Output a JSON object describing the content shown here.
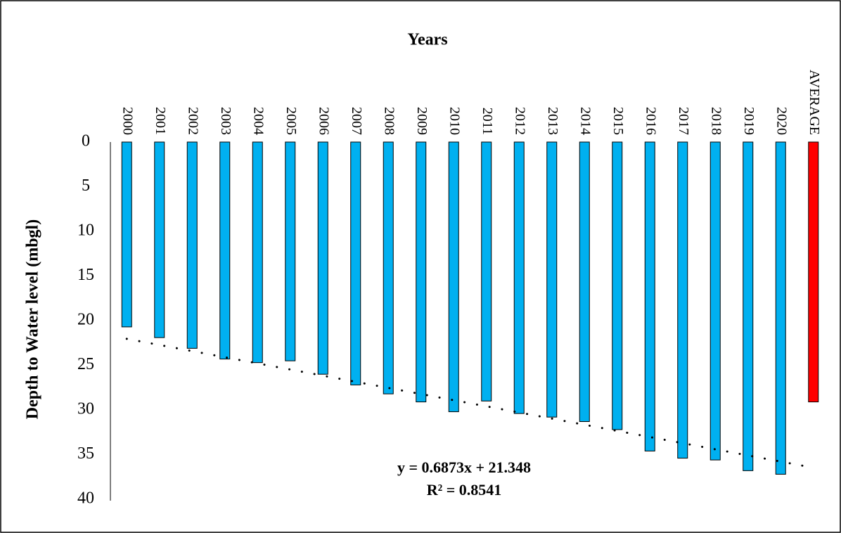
{
  "chart_data": {
    "type": "bar",
    "title": "Years",
    "y_label": "Depth to Water level (mbgl)",
    "categories": [
      "2000",
      "2001",
      "2002",
      "2003",
      "2004",
      "2005",
      "2006",
      "2007",
      "2008",
      "2009",
      "2010",
      "2011",
      "2012",
      "2013",
      "2014",
      "2015",
      "2016",
      "2017",
      "2018",
      "2019",
      "2020",
      "AVERAGE"
    ],
    "values": [
      20.7,
      21.9,
      23.1,
      24.3,
      24.7,
      24.5,
      26.0,
      27.2,
      28.2,
      29.1,
      30.2,
      29.0,
      30.4,
      30.8,
      31.3,
      32.2,
      34.6,
      35.4,
      35.6,
      36.8,
      37.2,
      29.1
    ],
    "colors": [
      "#00b0f0",
      "#00b0f0",
      "#00b0f0",
      "#00b0f0",
      "#00b0f0",
      "#00b0f0",
      "#00b0f0",
      "#00b0f0",
      "#00b0f0",
      "#00b0f0",
      "#00b0f0",
      "#00b0f0",
      "#00b0f0",
      "#00b0f0",
      "#00b0f0",
      "#00b0f0",
      "#00b0f0",
      "#00b0f0",
      "#00b0f0",
      "#00b0f0",
      "#00b0f0",
      "#ff0000"
    ],
    "ylim": [
      0,
      40
    ],
    "yticks": [
      0,
      5,
      10,
      15,
      20,
      25,
      30,
      35,
      40
    ],
    "y_inverted": true,
    "trendline": {
      "slope": 0.6873,
      "intercept": 21.348,
      "equation": "y = 0.6873x + 21.348",
      "r_squared": "R² = 0.8541"
    }
  }
}
